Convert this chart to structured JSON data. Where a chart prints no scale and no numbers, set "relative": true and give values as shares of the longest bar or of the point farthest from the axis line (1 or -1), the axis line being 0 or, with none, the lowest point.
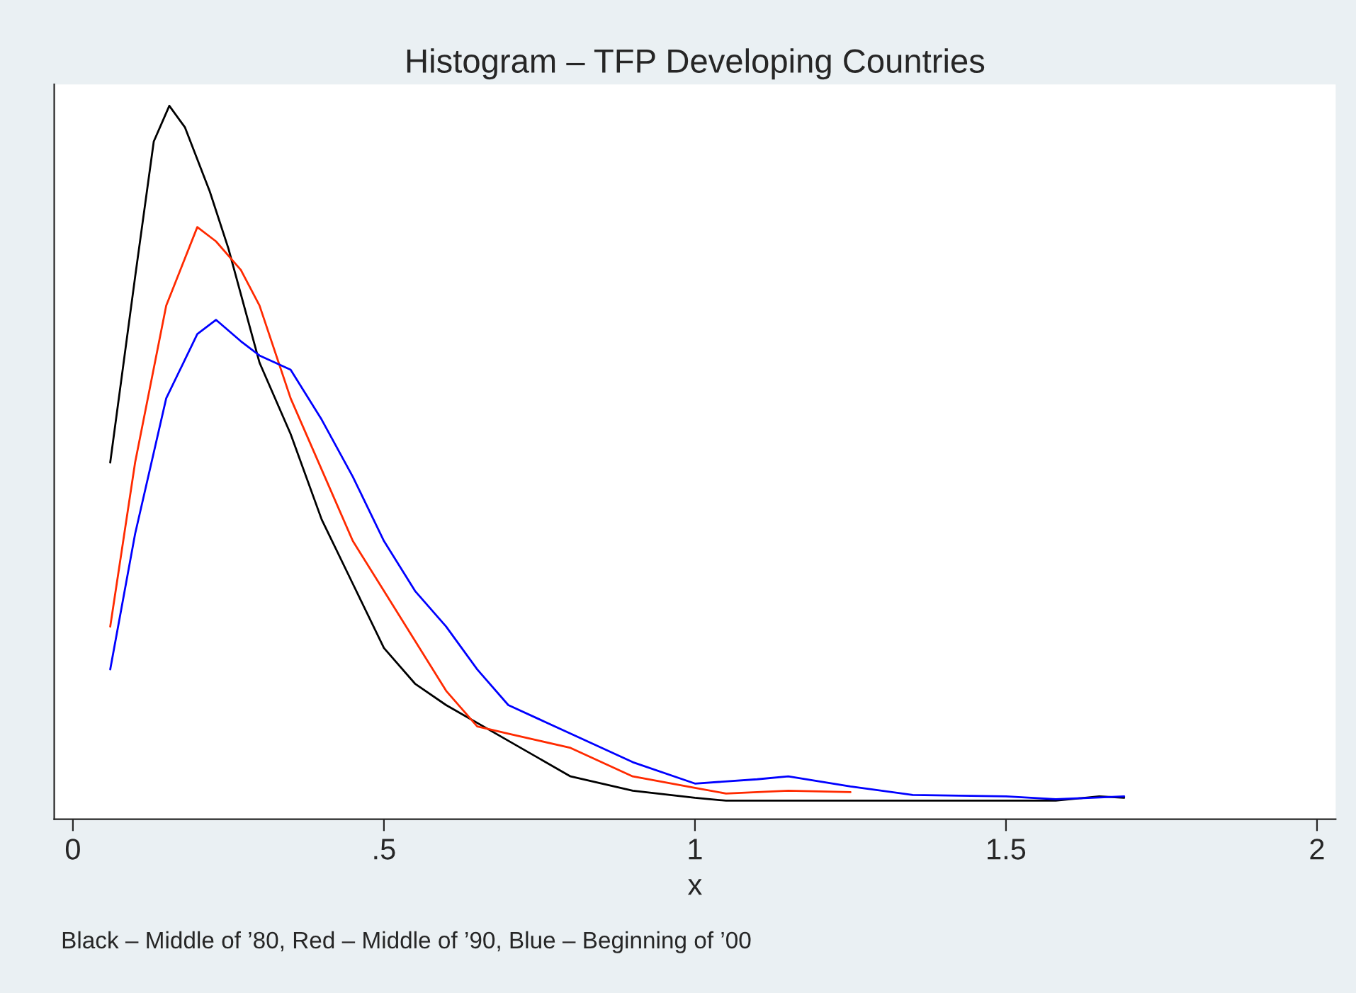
{
  "chart_data": {
    "type": "line",
    "title": "Histogram – TFP Developing Countries",
    "xlabel": "x",
    "relative": true,
    "xlim": [
      -0.03,
      2.03
    ],
    "xticks": [
      0,
      {
        "value": 0.5,
        "label": ".5"
      },
      1,
      1.5,
      2
    ],
    "marker": "none",
    "line_style": "solid",
    "series": [
      {
        "color": "#000000",
        "x": [
          0.06,
          0.1,
          0.13,
          0.155,
          0.18,
          0.22,
          0.25,
          0.3,
          0.35,
          0.4,
          0.45,
          0.5,
          0.55,
          0.6,
          0.7,
          0.8,
          0.9,
          1.0,
          1.05,
          1.2,
          1.5,
          1.58,
          1.65,
          1.69
        ],
        "values": [
          0.5,
          0.76,
          0.95,
          1.0,
          0.97,
          0.88,
          0.8,
          0.64,
          0.54,
          0.42,
          0.33,
          0.24,
          0.19,
          0.16,
          0.11,
          0.06,
          0.04,
          0.03,
          0.026,
          0.026,
          0.026,
          0.026,
          0.032,
          0.03
        ]
      },
      {
        "color": "#ff2a00",
        "x": [
          0.06,
          0.1,
          0.15,
          0.2,
          0.23,
          0.27,
          0.3,
          0.35,
          0.4,
          0.45,
          0.5,
          0.55,
          0.6,
          0.65,
          0.7,
          0.75,
          0.8,
          0.9,
          1.0,
          1.05,
          1.15,
          1.25
        ],
        "values": [
          0.27,
          0.5,
          0.72,
          0.83,
          0.81,
          0.77,
          0.72,
          0.59,
          0.49,
          0.39,
          0.32,
          0.25,
          0.18,
          0.13,
          0.12,
          0.11,
          0.1,
          0.06,
          0.044,
          0.036,
          0.04,
          0.038
        ]
      },
      {
        "color": "#0000ff",
        "x": [
          0.06,
          0.1,
          0.15,
          0.2,
          0.23,
          0.27,
          0.3,
          0.35,
          0.4,
          0.45,
          0.5,
          0.55,
          0.6,
          0.65,
          0.7,
          0.75,
          0.8,
          0.9,
          1.0,
          1.1,
          1.15,
          1.25,
          1.35,
          1.5,
          1.58,
          1.69
        ],
        "values": [
          0.21,
          0.4,
          0.59,
          0.68,
          0.7,
          0.67,
          0.65,
          0.63,
          0.56,
          0.48,
          0.39,
          0.32,
          0.27,
          0.21,
          0.16,
          0.14,
          0.12,
          0.08,
          0.05,
          0.056,
          0.06,
          0.046,
          0.034,
          0.032,
          0.028,
          0.032
        ]
      }
    ],
    "annotations": [
      "Black – Middle of ’80, Red – Middle of ’90, Blue – Beginning of ’00"
    ]
  }
}
